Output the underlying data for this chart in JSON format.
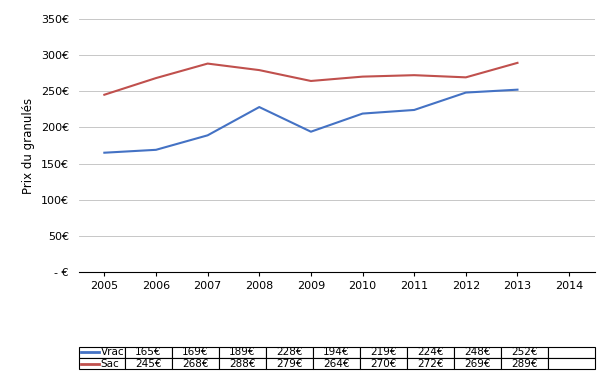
{
  "years": [
    2005,
    2006,
    2007,
    2008,
    2009,
    2010,
    2011,
    2012,
    2013,
    2014
  ],
  "vrac": [
    165,
    169,
    189,
    228,
    194,
    219,
    224,
    248,
    252,
    null
  ],
  "sac": [
    245,
    268,
    288,
    279,
    264,
    270,
    272,
    269,
    289,
    null
  ],
  "vrac_color": "#4472C4",
  "sac_color": "#C0504D",
  "ylabel": "Prix du granulés",
  "ylim_min": 0,
  "ylim_max": 350,
  "ytick_step": 50,
  "bg_color": "#FFFFFF",
  "grid_color": "#BEBEBE",
  "table_vrac_label": "Vrac",
  "table_sac_label": "Sac",
  "table_vrac_values": [
    "165€",
    "169€",
    "189€",
    "228€",
    "194€",
    "219€",
    "224€",
    "248€",
    "252€",
    ""
  ],
  "table_sac_values": [
    "245€",
    "268€",
    "288€",
    "279€",
    "264€",
    "270€",
    "272€",
    "269€",
    "289€",
    ""
  ]
}
